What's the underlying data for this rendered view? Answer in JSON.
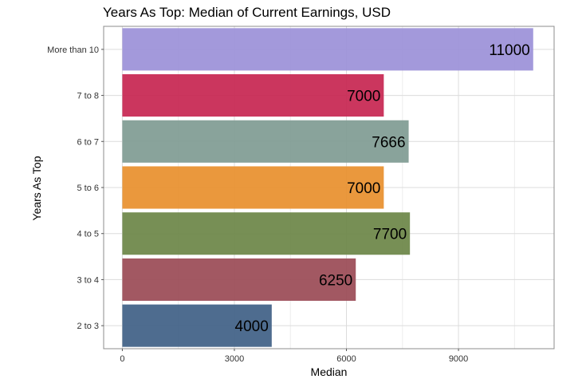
{
  "chart_data": {
    "type": "bar",
    "orientation": "horizontal",
    "title": "Years As Top: Median of Current Earnings, USD",
    "xlabel": "Median",
    "ylabel": "Years As Top",
    "categories": [
      "2 to 3",
      "3 to 4",
      "4 to 5",
      "5 to 6",
      "6 to 7",
      "7 to 8",
      "More than 10"
    ],
    "values": [
      4000,
      6250,
      7700,
      7000,
      7666,
      7000,
      11000
    ],
    "data_labels": [
      "4000",
      "6250",
      "7700",
      "7000",
      "7666",
      "7000",
      "11000"
    ],
    "colors": [
      "#3f5f86",
      "#9a4a55",
      "#6b8646",
      "#e88f2c",
      "#7f9b93",
      "#c72550",
      "#9b90d8"
    ],
    "xlim": [
      -500,
      11560
    ],
    "xticks": [
      0,
      3000,
      6000,
      9000
    ],
    "xtick_labels": [
      "0",
      "3000",
      "6000",
      "9000"
    ],
    "grid": true,
    "legend": "none"
  }
}
